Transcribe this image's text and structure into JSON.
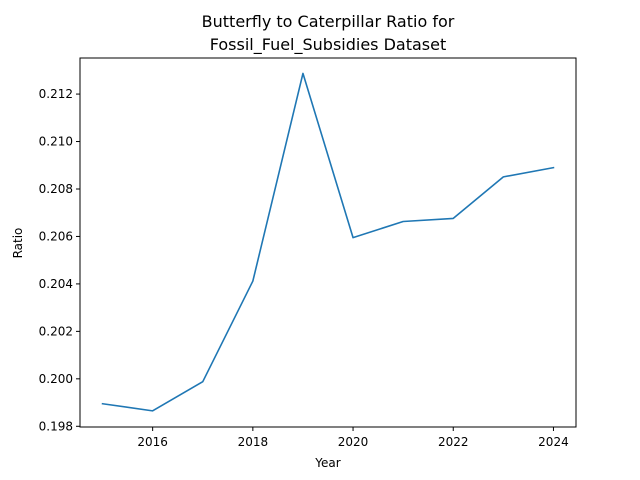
{
  "chart_data": {
    "type": "line",
    "title": "Butterfly to Caterpillar Ratio for",
    "title_line2": "Fossil_Fuel_Subsidies Dataset",
    "xlabel": "Year",
    "ylabel": "Ratio",
    "xlim": [
      2014.55,
      2024.45
    ],
    "ylim": [
      0.19797,
      0.21352
    ],
    "x_ticks": [
      2016,
      2018,
      2020,
      2022,
      2024
    ],
    "y_ticks": [
      0.198,
      0.2,
      0.202,
      0.204,
      0.206,
      0.208,
      0.21,
      0.212
    ],
    "y_tick_labels": [
      "0.198",
      "0.200",
      "0.202",
      "0.204",
      "0.206",
      "0.208",
      "0.210",
      "0.212"
    ],
    "grid": false,
    "series": [
      {
        "color": "#1f77b4",
        "x": [
          2015,
          2016,
          2017,
          2018,
          2019,
          2020,
          2021,
          2022,
          2023,
          2024
        ],
        "y": [
          0.19895,
          0.19865,
          0.19988,
          0.20412,
          0.21287,
          0.20595,
          0.20663,
          0.20676,
          0.20851,
          0.2089
        ]
      }
    ]
  }
}
